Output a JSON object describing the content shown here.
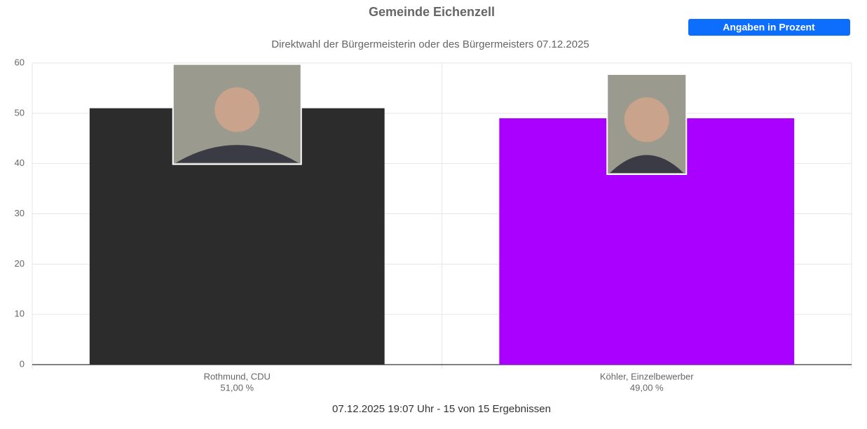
{
  "chart_data": {
    "type": "bar",
    "title": "Gemeinde Eichenzell",
    "subtitle": "Direktwahl der Bürgermeisterin oder des Bürgermeisters 07.12.2025",
    "button": "Angaben in Prozent",
    "footer": "07.12.2025 19:07 Uhr - 15 von 15 Ergebnissen",
    "categories": [
      "Rothmund, CDU",
      "Köhler, Einzelbewerber"
    ],
    "values": [
      51,
      49
    ],
    "value_labels": [
      "51,00 %",
      "49,00 %"
    ],
    "colors": [
      "#2d2c2c",
      "#aa00ff"
    ],
    "ylim": [
      0,
      60
    ],
    "yticks": [
      0,
      10,
      20,
      30,
      40,
      50,
      60
    ],
    "grid": true
  }
}
